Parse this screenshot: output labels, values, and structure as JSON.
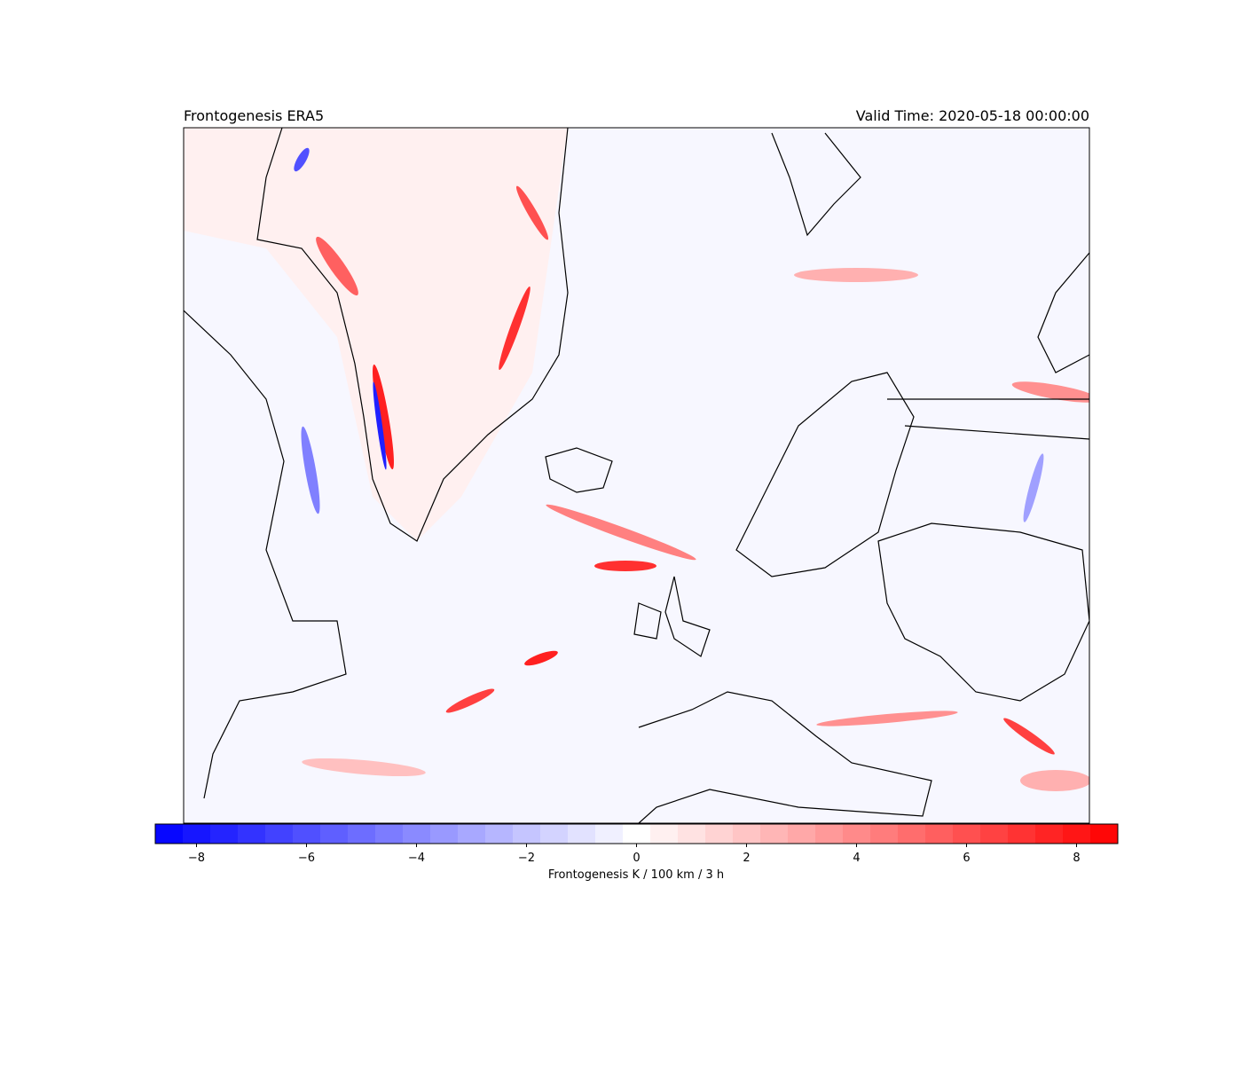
{
  "chart_data": {
    "type": "map",
    "title": "Frontogenesis ERA5",
    "subtitle": "Valid Time: 2020-05-18 00:00:00",
    "colorbar": {
      "label": "Frontogenesis K / 100 km / 3 h",
      "lim": [
        -8.75,
        8.75
      ],
      "colors": [
        "#0000ff",
        "#ffffff",
        "#ff0000"
      ],
      "ticks": [
        {
          "value": -8,
          "label": "−8"
        },
        {
          "value": -6,
          "label": "−6"
        },
        {
          "value": -4,
          "label": "−4"
        },
        {
          "value": -2,
          "label": "−2"
        },
        0,
        2,
        4,
        6,
        8
      ]
    }
  }
}
